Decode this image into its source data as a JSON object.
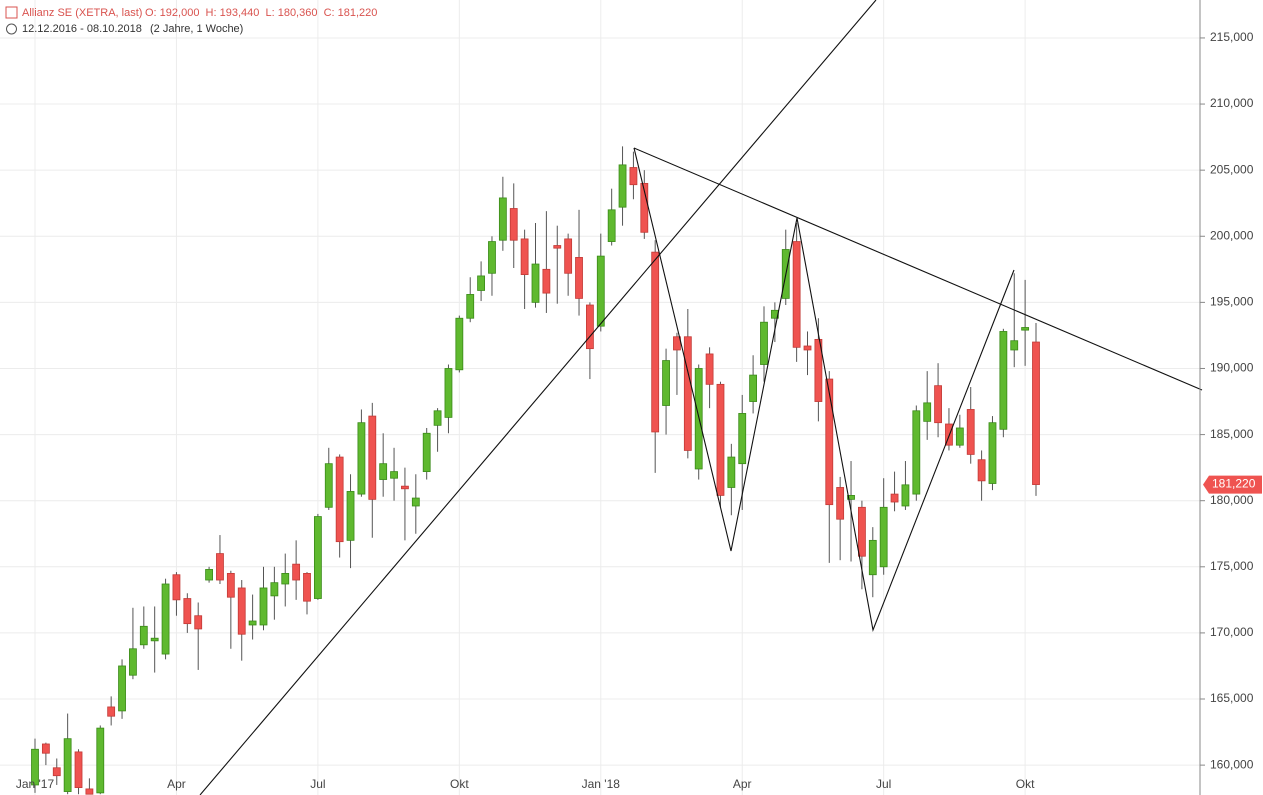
{
  "chart_data": {
    "type": "candlestick",
    "title": "Allianz SE (XETRA, last)",
    "ohlc_text": "O: 192,000  H: 193,440  L: 180,360  C: 181,220",
    "date_range": "12.12.2016 - 08.10.2018",
    "span": "(2 Jahre, 1 Woche)",
    "categories": [
      "Jan '17",
      null,
      null,
      null,
      null,
      null,
      null,
      null,
      null,
      null,
      null,
      null,
      null,
      "Apr",
      null,
      null,
      null,
      null,
      null,
      null,
      null,
      null,
      null,
      null,
      null,
      null,
      "Jul",
      null,
      null,
      null,
      null,
      null,
      null,
      null,
      null,
      null,
      null,
      null,
      null,
      "Okt",
      null,
      null,
      null,
      null,
      null,
      null,
      null,
      null,
      null,
      null,
      null,
      null,
      "Jan '18",
      null,
      null,
      null,
      null,
      null,
      null,
      null,
      null,
      null,
      null,
      null,
      null,
      "Apr",
      null,
      null,
      null,
      null,
      null,
      null,
      null,
      null,
      null,
      null,
      null,
      null,
      "Jul",
      null,
      null,
      null,
      null,
      null,
      null,
      null,
      null,
      null,
      null,
      null,
      null,
      "Okt",
      null
    ],
    "open": [
      158500,
      161600,
      159800,
      158000,
      161000,
      158200,
      157900,
      164400,
      164100,
      166800,
      169100,
      169400,
      168400,
      174400,
      172600,
      171300,
      174000,
      176000,
      174500,
      173400,
      170600,
      170600,
      172800,
      173700,
      175200,
      174500,
      172600,
      179500,
      183300,
      177000,
      180500,
      186400,
      181600,
      181700,
      181100,
      179600,
      182200,
      185700,
      186300,
      189900,
      193800,
      195900,
      197200,
      199700,
      202100,
      199800,
      195000,
      197500,
      199300,
      199800,
      198400,
      194800,
      193200,
      199600,
      202200,
      205200,
      204000,
      198800,
      187200,
      192400,
      192400,
      182400,
      191100,
      188800,
      181000,
      182800,
      187500,
      190300,
      193800,
      195300,
      199600,
      191700,
      192200,
      189200,
      181000,
      180100,
      179500,
      174400,
      175000,
      180500,
      179600,
      180500,
      186000,
      188700,
      185800,
      184200,
      186900,
      183100,
      181300,
      185400,
      191400,
      192900,
      192000
    ],
    "high": [
      162000,
      161700,
      160500,
      163900,
      161200,
      159000,
      163000,
      165200,
      168000,
      171900,
      172000,
      172000,
      174100,
      174600,
      173000,
      172300,
      175000,
      177400,
      174700,
      174000,
      172900,
      175000,
      175000,
      176000,
      177000,
      174600,
      179000,
      184000,
      183500,
      182000,
      186900,
      187400,
      185100,
      184000,
      182500,
      182000,
      185500,
      187000,
      190300,
      194000,
      196900,
      198100,
      200000,
      204500,
      204000,
      200500,
      201000,
      201900,
      200800,
      200200,
      202000,
      195000,
      200200,
      203600,
      206800,
      206400,
      205000,
      199700,
      191500,
      192700,
      194500,
      190300,
      191600,
      189000,
      184300,
      188000,
      191000,
      194700,
      195000,
      200500,
      201000,
      192800,
      193800,
      189800,
      181800,
      183000,
      180000,
      178000,
      181700,
      182200,
      183000,
      187200,
      189800,
      190400,
      187000,
      186500,
      188600,
      183800,
      186400,
      193000,
      197200,
      196700,
      193440
    ],
    "low": [
      157900,
      160000,
      158500,
      157800,
      157800,
      157800,
      157800,
      163000,
      163500,
      166500,
      168800,
      167000,
      168000,
      171300,
      170000,
      167200,
      173800,
      173700,
      168800,
      167900,
      169500,
      170200,
      171000,
      172000,
      172500,
      171400,
      172500,
      179300,
      175700,
      174900,
      180300,
      177200,
      180300,
      180000,
      177000,
      177500,
      181600,
      183700,
      185100,
      189700,
      193500,
      195100,
      195500,
      198900,
      197600,
      194500,
      194600,
      194200,
      194900,
      195500,
      194000,
      189200,
      192800,
      199300,
      200800,
      202800,
      199800,
      182100,
      185000,
      188000,
      183200,
      181600,
      187000,
      179500,
      178900,
      179300,
      186600,
      189000,
      192000,
      194800,
      190500,
      189500,
      186000,
      175300,
      175500,
      175400,
      173300,
      172700,
      174400,
      179200,
      179300,
      180000,
      184600,
      184800,
      183800,
      184000,
      182800,
      180000,
      180800,
      184800,
      190100,
      190200,
      180360
    ],
    "close": [
      161200,
      160900,
      159200,
      162000,
      158300,
      157800,
      162800,
      163700,
      167500,
      168800,
      170500,
      169600,
      173700,
      172500,
      170700,
      170300,
      174800,
      174000,
      172700,
      169900,
      170900,
      173400,
      173800,
      174500,
      174000,
      172400,
      178800,
      182800,
      176900,
      180700,
      185900,
      180100,
      182800,
      182200,
      180900,
      180200,
      185100,
      186800,
      190000,
      193800,
      195600,
      197000,
      199600,
      202900,
      199700,
      197100,
      197900,
      195700,
      199100,
      197200,
      195300,
      191500,
      198500,
      202000,
      205400,
      203900,
      200300,
      185200,
      190600,
      191400,
      183800,
      190000,
      188800,
      180400,
      183300,
      186600,
      189500,
      193500,
      194400,
      199000,
      191600,
      191400,
      187500,
      179700,
      178600,
      180400,
      175800,
      177000,
      179500,
      179900,
      181200,
      186800,
      187400,
      185900,
      184200,
      185500,
      183500,
      181500,
      185900,
      192800,
      192100,
      193100,
      181220
    ],
    "up_color": "#5fb92f",
    "down_color": "#ef5350",
    "last_price": {
      "value": 181220,
      "label": "181,220"
    },
    "ylim": [
      157740,
      217870
    ],
    "yticks": [
      {
        "value": 160000,
        "label": "160,000"
      },
      {
        "value": 165000,
        "label": "165,000"
      },
      {
        "value": 170000,
        "label": "170,000"
      },
      {
        "value": 175000,
        "label": "175,000"
      },
      {
        "value": 180000,
        "label": "180,000"
      },
      {
        "value": 185000,
        "label": "185,000"
      },
      {
        "value": 190000,
        "label": "190,000"
      },
      {
        "value": 195000,
        "label": "195,000"
      },
      {
        "value": 200000,
        "label": "200,000"
      },
      {
        "value": 205000,
        "label": "205,000"
      },
      {
        "value": 210000,
        "label": "210,000"
      },
      {
        "value": 215000,
        "label": "215,000"
      }
    ],
    "grid": true
  }
}
